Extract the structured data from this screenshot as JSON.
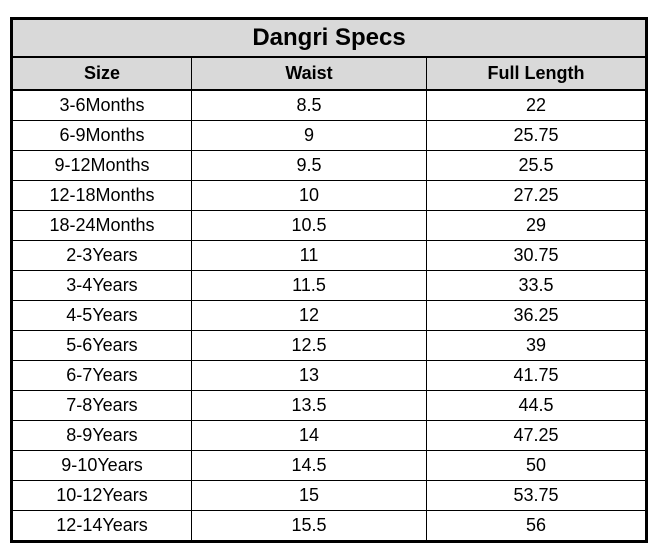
{
  "colors": {
    "header_bg": "#d9d9d9",
    "border": "#000000",
    "text": "#000000",
    "page_bg": "#ffffff"
  },
  "chart_data": {
    "type": "table",
    "title": "Dangri Specs",
    "columns": [
      "Size",
      "Waist",
      "Full Length"
    ],
    "rows": [
      [
        "3-6Months",
        8.5,
        22
      ],
      [
        "6-9Months",
        9,
        25.75
      ],
      [
        "9-12Months",
        9.5,
        25.5
      ],
      [
        "12-18Months",
        10,
        27.25
      ],
      [
        "18-24Months",
        10.5,
        29
      ],
      [
        "2-3Years",
        11,
        30.75
      ],
      [
        "3-4Years",
        11.5,
        33.5
      ],
      [
        "4-5Years",
        12,
        36.25
      ],
      [
        "5-6Years",
        12.5,
        39
      ],
      [
        "6-7Years",
        13,
        41.75
      ],
      [
        "7-8Years",
        13.5,
        44.5
      ],
      [
        "8-9Years",
        14,
        47.25
      ],
      [
        "9-10Years",
        14.5,
        50
      ],
      [
        "10-12Years",
        15,
        53.75
      ],
      [
        "12-14Years",
        15.5,
        56
      ]
    ]
  }
}
